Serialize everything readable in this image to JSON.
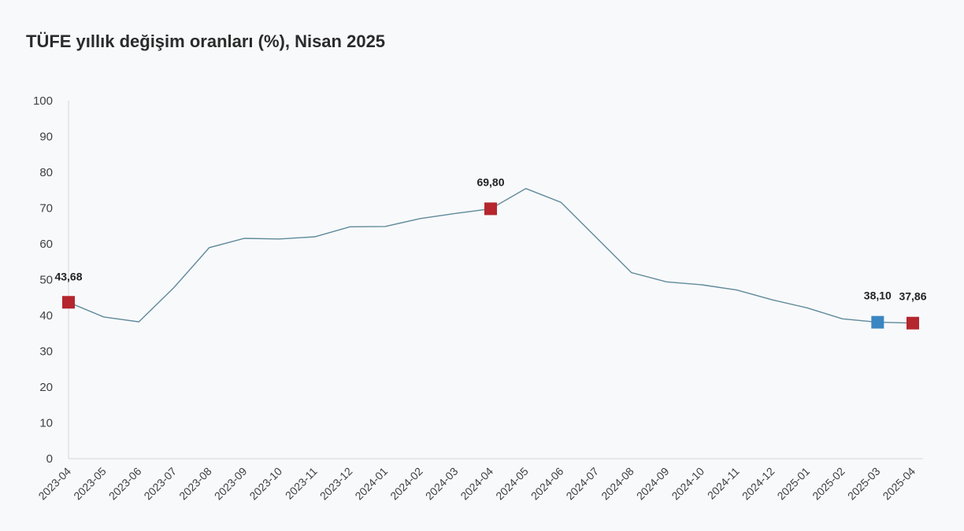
{
  "title": "TÜFE yıllık değişim oranları (%), Nisan 2025",
  "colors": {
    "line": "#5f8a9a",
    "marker_red": "#b5262e",
    "marker_blue": "#3a86c2",
    "axis": "#d6d6d6"
  },
  "chart_data": {
    "type": "line",
    "title": "TÜFE yıllık değişim oranları (%), Nisan 2025",
    "xlabel": "",
    "ylabel": "",
    "ylim": [
      0,
      100
    ],
    "yticks": [
      "0",
      "10",
      "20",
      "30",
      "40",
      "50",
      "60",
      "70",
      "80",
      "90",
      "100"
    ],
    "grid": false,
    "categories": [
      "2023-04",
      "2023-05",
      "2023-06",
      "2023-07",
      "2023-08",
      "2023-09",
      "2023-10",
      "2023-11",
      "2023-12",
      "2024-01",
      "2024-02",
      "2024-03",
      "2024-04",
      "2024-05",
      "2024-06",
      "2024-07",
      "2024-08",
      "2024-09",
      "2024-10",
      "2024-11",
      "2024-12",
      "2025-01",
      "2025-02",
      "2025-03",
      "2025-04"
    ],
    "series": [
      {
        "values": [
          43.68,
          39.59,
          38.21,
          47.83,
          58.94,
          61.53,
          61.36,
          61.98,
          64.77,
          64.86,
          67.07,
          68.5,
          69.8,
          75.45,
          71.6,
          61.78,
          51.97,
          49.38,
          48.58,
          47.09,
          44.38,
          42.12,
          39.05,
          38.1,
          37.86
        ]
      }
    ],
    "highlights": [
      {
        "index": 0,
        "label": "43,68",
        "color": "red"
      },
      {
        "index": 12,
        "label": "69,80",
        "color": "red"
      },
      {
        "index": 23,
        "label": "38,10",
        "color": "blue"
      },
      {
        "index": 24,
        "label": "37,86",
        "color": "red"
      }
    ]
  }
}
